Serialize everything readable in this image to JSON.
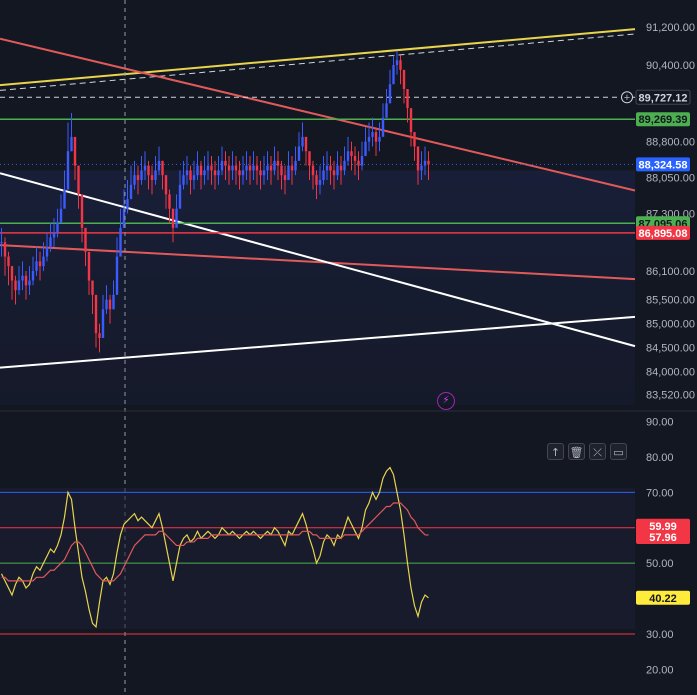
{
  "chart_data": [
    {
      "type": "line",
      "panel": "price",
      "y_ticks": [
        "91,200.00",
        "90,400.00",
        "88,800.00",
        "88,050.00",
        "87,300.00",
        "86,100.00",
        "85,500.00",
        "85,000.00",
        "84,500.00",
        "84,000.00",
        "83,520.00"
      ],
      "ylim": [
        83300,
        91550
      ],
      "price_tags": [
        {
          "label": "89,727.12",
          "kind": "crosshair",
          "color": "#131722",
          "text": "#d1d4dc"
        },
        {
          "label": "89,269.39",
          "kind": "green-line",
          "color": "#4caf50",
          "text": "#131722"
        },
        {
          "label": "88,324.58",
          "kind": "last-price",
          "color": "#2962ff",
          "text": "#ffffff"
        },
        {
          "label": "87,095.06",
          "kind": "green-line",
          "color": "#4caf50",
          "text": "#131722"
        },
        {
          "label": "86,895.08",
          "kind": "red-line",
          "color": "#f23645",
          "text": "#ffffff"
        }
      ],
      "series": [
        {
          "kind": "candles",
          "up_color": "#3b5bff",
          "down_color": "#f23645",
          "x_start": 0,
          "x_step": 3.5,
          "close": [
            86700,
            86400,
            86200,
            85900,
            85700,
            85900,
            86000,
            85800,
            85900,
            86100,
            86300,
            86200,
            86400,
            86600,
            86800,
            86900,
            87100,
            87400,
            87800,
            88600,
            88900,
            88300,
            87700,
            87000,
            86500,
            85900,
            85600,
            84800,
            84700,
            85300,
            85500,
            85300,
            85600,
            86400,
            87000,
            87400,
            87600,
            87900,
            88100,
            88000,
            88200,
            88300,
            88100,
            88000,
            88200,
            88400,
            88100,
            87700,
            87400,
            87000,
            87400,
            87900,
            88100,
            88200,
            88000,
            88100,
            88300,
            88100,
            88200,
            88300,
            88200,
            88100,
            88200,
            88400,
            88300,
            88200,
            88300,
            88200,
            88100,
            88200,
            88300,
            88200,
            88300,
            88200,
            88100,
            88200,
            88300,
            88200,
            88400,
            88300,
            88100,
            88000,
            88300,
            88200,
            88400,
            88700,
            88900,
            88600,
            88300,
            88100,
            87900,
            88000,
            88200,
            88300,
            88200,
            88100,
            88300,
            88200,
            88400,
            88600,
            88500,
            88400,
            88300,
            88500,
            88800,
            88900,
            89000,
            88800,
            88900,
            89300,
            89600,
            90000,
            90400,
            90500,
            90300,
            89900,
            89500,
            89000,
            88700,
            88200,
            88300,
            88400,
            88324.58
          ],
          "wick_hi": [
            87000,
            86800,
            86500,
            86200,
            86000,
            86200,
            86300,
            86100,
            86200,
            86400,
            86600,
            86500,
            86700,
            86900,
            87100,
            87200,
            87400,
            87700,
            88200,
            89200,
            89400,
            88800,
            88100,
            87400,
            86900,
            86300,
            85900,
            85200,
            85000,
            85600,
            85800,
            85600,
            85900,
            86800,
            87400,
            87800,
            88000,
            88300,
            88400,
            88300,
            88500,
            88600,
            88400,
            88300,
            88500,
            88700,
            88400,
            88100,
            87800,
            87400,
            87700,
            88200,
            88400,
            88500,
            88300,
            88400,
            88600,
            88400,
            88500,
            88600,
            88500,
            88400,
            88500,
            88700,
            88600,
            88500,
            88600,
            88500,
            88400,
            88500,
            88600,
            88500,
            88600,
            88500,
            88400,
            88500,
            88600,
            88500,
            88700,
            88600,
            88400,
            88300,
            88600,
            88500,
            88700,
            89000,
            89200,
            88900,
            88600,
            88400,
            88200,
            88300,
            88500,
            88600,
            88500,
            88400,
            88600,
            88500,
            88700,
            88900,
            88800,
            88700,
            88600,
            88800,
            89100,
            89200,
            89300,
            89100,
            89200,
            89600,
            89900,
            90300,
            90600,
            90700,
            90600,
            90200,
            89800,
            89300,
            89000,
            88500,
            88600,
            88700,
            88600
          ],
          "wick_lo": [
            86400,
            86000,
            85800,
            85500,
            85400,
            85600,
            85700,
            85500,
            85600,
            85800,
            86000,
            85900,
            86100,
            86300,
            86500,
            86600,
            86800,
            87100,
            87500,
            88300,
            88600,
            88000,
            87400,
            86700,
            86200,
            85600,
            85200,
            84500,
            84400,
            85000,
            85200,
            85000,
            85300,
            86000,
            86700,
            87100,
            87300,
            87600,
            87800,
            87700,
            87900,
            88000,
            87800,
            87700,
            87900,
            88100,
            87800,
            87400,
            87100,
            86700,
            87100,
            87600,
            87800,
            87900,
            87700,
            87800,
            88000,
            87800,
            87900,
            88000,
            87900,
            87800,
            87900,
            88100,
            88000,
            87900,
            88000,
            87900,
            87800,
            87900,
            88000,
            87900,
            88000,
            87900,
            87800,
            87900,
            88000,
            87900,
            88100,
            88000,
            87800,
            87700,
            88000,
            87900,
            88100,
            88400,
            88600,
            88300,
            88000,
            87800,
            87600,
            87700,
            87900,
            88000,
            87900,
            87800,
            88000,
            87900,
            88100,
            88300,
            88200,
            88100,
            88000,
            88200,
            88500,
            88600,
            88700,
            88500,
            88600,
            89000,
            89300,
            89700,
            90100,
            90200,
            90000,
            89600,
            89200,
            88700,
            88400,
            87900,
            88000,
            88100,
            88000
          ]
        }
      ],
      "lines": [
        {
          "name": "",
          "color": "#e8d44d",
          "from": [
            0,
            89980
          ],
          "to": [
            635,
            91150
          ]
        },
        {
          "name": "",
          "color": "#d1d4dc",
          "dashed": true,
          "from": [
            0,
            89870
          ],
          "to": [
            635,
            91050
          ]
        },
        {
          "name": "",
          "color": "#e05a5a",
          "from": [
            0,
            90950
          ],
          "to": [
            635,
            87780
          ]
        },
        {
          "name": "",
          "color": "#e05a5a",
          "from": [
            0,
            86640
          ],
          "to": [
            635,
            85930
          ]
        },
        {
          "name": "",
          "color": "#ffffff",
          "from": [
            0,
            88140
          ],
          "to": [
            635,
            84530
          ]
        },
        {
          "name": "",
          "color": "#ffffff",
          "from": [
            0,
            84080
          ],
          "to": [
            635,
            85140
          ]
        }
      ],
      "horizontal_levels": [
        {
          "value": 89269.39,
          "color": "#4caf50"
        },
        {
          "value": 87095.06,
          "color": "#4caf50"
        },
        {
          "value": 86895.08,
          "color": "#f23645"
        },
        {
          "value": 89727.12,
          "color": "#d1d4dc",
          "dashed": true
        },
        {
          "value": 88324.58,
          "color": "#2962ff",
          "dotted": true
        }
      ]
    },
    {
      "type": "line",
      "panel": "oscillator",
      "y_ticks": [
        "90.00",
        "80.00",
        "70.00",
        "60.00",
        "50.00",
        "40.00",
        "30.00",
        "20.00"
      ],
      "ylim": [
        17,
        91
      ],
      "tags": [
        {
          "label": "59.99",
          "color": "#f23645",
          "text": "#ffffff"
        },
        {
          "label": "57.96",
          "color": "#f23645",
          "text": "#ffffff"
        },
        {
          "label": "40.22",
          "color": "#ffeb3b",
          "text": "#131722"
        }
      ],
      "levels": [
        {
          "value": 70,
          "color": "#2962ff"
        },
        {
          "value": 60,
          "color": "#f23645"
        },
        {
          "value": 50,
          "color": "#4caf50"
        },
        {
          "value": 30,
          "color": "#f23645"
        }
      ],
      "series": [
        {
          "name": "",
          "color": "#e8d44d",
          "x_start": 0,
          "x_step": 3.5,
          "values": [
            47,
            45,
            43,
            41,
            44,
            46,
            45,
            43,
            44,
            47,
            49,
            48,
            50,
            52,
            54,
            53,
            55,
            58,
            63,
            70,
            68,
            60,
            53,
            46,
            42,
            37,
            33,
            32,
            39,
            45,
            46,
            44,
            47,
            53,
            58,
            61,
            62,
            63,
            64,
            62,
            63,
            62,
            61,
            60,
            62,
            64,
            60,
            55,
            50,
            45,
            50,
            55,
            57,
            58,
            56,
            57,
            59,
            57,
            58,
            59,
            58,
            57,
            58,
            60,
            59,
            58,
            59,
            58,
            57,
            58,
            59,
            58,
            59,
            58,
            57,
            58,
            59,
            58,
            60,
            59,
            57,
            55,
            59,
            58,
            60,
            62,
            64,
            61,
            57,
            54,
            50,
            52,
            56,
            58,
            57,
            55,
            58,
            57,
            60,
            63,
            61,
            59,
            57,
            60,
            65,
            67,
            70,
            68,
            70,
            74,
            76,
            77,
            75,
            70,
            65,
            58,
            50,
            43,
            38,
            35,
            39,
            41,
            40.22
          ]
        },
        {
          "name": "",
          "color": "#e05a5a",
          "x_start": 0,
          "x_step": 3.5,
          "values": [
            46,
            46,
            45,
            45,
            45,
            45,
            45,
            45,
            45,
            45,
            46,
            46,
            46,
            47,
            48,
            48,
            49,
            50,
            51,
            53,
            55,
            56,
            56,
            55,
            53,
            51,
            49,
            47,
            46,
            45,
            45,
            45,
            45,
            46,
            47,
            49,
            51,
            53,
            55,
            56,
            57,
            58,
            58,
            58,
            58,
            59,
            59,
            58,
            57,
            56,
            55,
            55,
            55,
            56,
            56,
            56,
            57,
            57,
            57,
            57,
            58,
            58,
            58,
            58,
            58,
            58,
            58,
            58,
            58,
            58,
            58,
            58,
            58,
            58,
            58,
            58,
            58,
            58,
            58,
            58,
            58,
            58,
            58,
            58,
            58,
            58,
            59,
            59,
            59,
            58,
            58,
            57,
            57,
            57,
            57,
            57,
            57,
            57,
            58,
            58,
            58,
            58,
            58,
            59,
            60,
            61,
            62,
            63,
            64,
            65,
            66,
            66,
            67,
            67,
            67,
            66,
            65,
            63,
            62,
            60,
            59,
            58,
            57.96
          ]
        }
      ]
    }
  ],
  "toolbar": {
    "icons": [
      "arrow-up-icon",
      "delete-icon",
      "collapse-icon",
      "maximize-icon"
    ],
    "glyphs": [
      "↑",
      "🗑",
      "⤫",
      "▭"
    ]
  },
  "alert": {
    "glyph": "⚡"
  }
}
